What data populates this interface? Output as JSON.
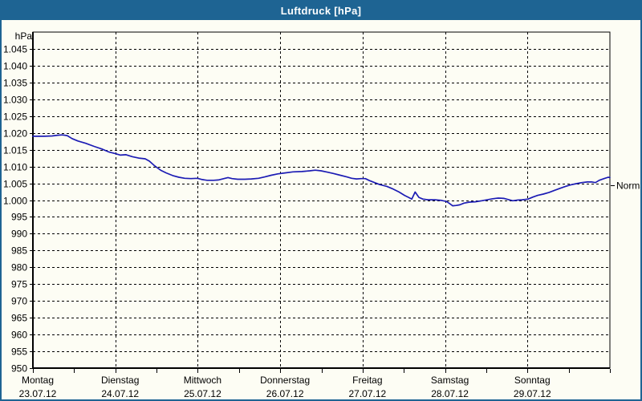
{
  "window": {
    "title": "Luftdruck [hPa]"
  },
  "colors": {
    "accent": "#1e6493",
    "title_text": "#ffffff",
    "background": "#fdfdf4",
    "grid": "#000000",
    "line": "#1c1cb4"
  },
  "chart_data": {
    "type": "line",
    "title": "Luftdruck [hPa]",
    "y_axis_unit": "hPa",
    "ylim": [
      950,
      1050
    ],
    "y_tick_step": 5,
    "grid": "dashed",
    "legend_position": "none",
    "y_ticks": [
      {
        "value": 1045,
        "label": "1.045"
      },
      {
        "value": 1040,
        "label": "1.040"
      },
      {
        "value": 1035,
        "label": "1.035"
      },
      {
        "value": 1030,
        "label": "1.030"
      },
      {
        "value": 1025,
        "label": "1.025"
      },
      {
        "value": 1020,
        "label": "1.020"
      },
      {
        "value": 1015,
        "label": "1.015"
      },
      {
        "value": 1010,
        "label": "1.010"
      },
      {
        "value": 1005,
        "label": "1.005"
      },
      {
        "value": 1000,
        "label": "1.000"
      },
      {
        "value": 995,
        "label": "995"
      },
      {
        "value": 990,
        "label": "990"
      },
      {
        "value": 985,
        "label": "985"
      },
      {
        "value": 980,
        "label": "980"
      },
      {
        "value": 975,
        "label": "975"
      },
      {
        "value": 970,
        "label": "970"
      },
      {
        "value": 965,
        "label": "965"
      },
      {
        "value": 960,
        "label": "960"
      },
      {
        "value": 955,
        "label": "955"
      },
      {
        "value": 950,
        "label": "950"
      }
    ],
    "x_days": [
      {
        "weekday": "Montag",
        "date": "23.07.12"
      },
      {
        "weekday": "Dienstag",
        "date": "24.07.12"
      },
      {
        "weekday": "Mittwoch",
        "date": "25.07.12"
      },
      {
        "weekday": "Donnerstag",
        "date": "26.07.12"
      },
      {
        "weekday": "Freitag",
        "date": "27.07.12"
      },
      {
        "weekday": "Samstag",
        "date": "28.07.12"
      },
      {
        "weekday": "Sonntag",
        "date": "29.07.12"
      }
    ],
    "x_range_hours": [
      0,
      168
    ],
    "normal_marker": {
      "label": "Normal",
      "value": 1004.4
    },
    "series": [
      {
        "name": "Luftdruck",
        "unit": "hPa",
        "points": [
          [
            0,
            1019
          ],
          [
            3.3,
            1019
          ],
          [
            5.6,
            1019.1
          ],
          [
            7.2,
            1019.3
          ],
          [
            8.6,
            1019.4
          ],
          [
            10,
            1019.2
          ],
          [
            11.4,
            1018.3
          ],
          [
            13.1,
            1017.6
          ],
          [
            15.4,
            1016.9
          ],
          [
            17.8,
            1016
          ],
          [
            20.1,
            1015.2
          ],
          [
            22.2,
            1014.3
          ],
          [
            23.8,
            1013.9
          ],
          [
            25.5,
            1013.4
          ],
          [
            27.1,
            1013.5
          ],
          [
            29,
            1012.9
          ],
          [
            30.8,
            1012.5
          ],
          [
            32.7,
            1012.3
          ],
          [
            33.9,
            1011.6
          ],
          [
            35.3,
            1010.3
          ],
          [
            37.2,
            1008.9
          ],
          [
            38.8,
            1008.1
          ],
          [
            40.7,
            1007.3
          ],
          [
            42.5,
            1006.8
          ],
          [
            44.2,
            1006.5
          ],
          [
            46,
            1006.4
          ],
          [
            47.9,
            1006.5
          ],
          [
            49.3,
            1006.1
          ],
          [
            50.7,
            1005.9
          ],
          [
            52.6,
            1005.9
          ],
          [
            54,
            1006
          ],
          [
            55.6,
            1006.4
          ],
          [
            56.8,
            1006.7
          ],
          [
            58,
            1006.4
          ],
          [
            59.6,
            1006.2
          ],
          [
            61.7,
            1006.2
          ],
          [
            63.6,
            1006.3
          ],
          [
            65.7,
            1006.5
          ],
          [
            67.5,
            1006.9
          ],
          [
            69.4,
            1007.4
          ],
          [
            71.3,
            1007.8
          ],
          [
            73.4,
            1008.1
          ],
          [
            75.7,
            1008.4
          ],
          [
            78.3,
            1008.5
          ],
          [
            80.6,
            1008.7
          ],
          [
            82.2,
            1008.9
          ],
          [
            83.9,
            1008.7
          ],
          [
            85.8,
            1008.3
          ],
          [
            87.6,
            1007.9
          ],
          [
            89.5,
            1007.4
          ],
          [
            91.4,
            1006.9
          ],
          [
            92.8,
            1006.5
          ],
          [
            94.2,
            1006.3
          ],
          [
            95.6,
            1006.4
          ],
          [
            96.8,
            1006.4
          ],
          [
            98,
            1005.8
          ],
          [
            99.5,
            1005.2
          ],
          [
            101,
            1004.6
          ],
          [
            103,
            1004.1
          ],
          [
            104.9,
            1003.3
          ],
          [
            106.6,
            1002.4
          ],
          [
            108.2,
            1001.4
          ],
          [
            109.6,
            1000.7
          ],
          [
            110.3,
            1000.3
          ],
          [
            111.3,
            1002.4
          ],
          [
            112.4,
            1000.8
          ],
          [
            113.5,
            1000.3
          ],
          [
            115,
            1000.1
          ],
          [
            117,
            1000.1
          ],
          [
            119,
            999.9
          ],
          [
            120.4,
            999.6
          ],
          [
            121.3,
            999
          ],
          [
            122.2,
            998.3
          ],
          [
            123.2,
            998.4
          ],
          [
            124.3,
            998.6
          ],
          [
            125.5,
            999.1
          ],
          [
            127.1,
            999.4
          ],
          [
            128.8,
            999.5
          ],
          [
            130.7,
            999.8
          ],
          [
            132.3,
            1000.1
          ],
          [
            133.9,
            1000.4
          ],
          [
            135.5,
            1000.6
          ],
          [
            137.2,
            1000.5
          ],
          [
            138.6,
            1000.1
          ],
          [
            139.7,
            999.8
          ],
          [
            141.1,
            1000
          ],
          [
            142.5,
            1000.1
          ],
          [
            144.2,
            1000.3
          ],
          [
            145.6,
            1000.9
          ],
          [
            147,
            1001.4
          ],
          [
            148.6,
            1001.8
          ],
          [
            150.3,
            1002.3
          ],
          [
            151.9,
            1002.9
          ],
          [
            153.5,
            1003.5
          ],
          [
            154.9,
            1004
          ],
          [
            156.5,
            1004.5
          ],
          [
            158.2,
            1004.9
          ],
          [
            159.8,
            1005.2
          ],
          [
            161.4,
            1005.4
          ],
          [
            162.8,
            1005.4
          ],
          [
            163.8,
            1005.2
          ],
          [
            164.9,
            1005.9
          ],
          [
            166.3,
            1006.4
          ],
          [
            167.5,
            1006.8
          ],
          [
            168,
            1006.7
          ]
        ]
      }
    ]
  }
}
